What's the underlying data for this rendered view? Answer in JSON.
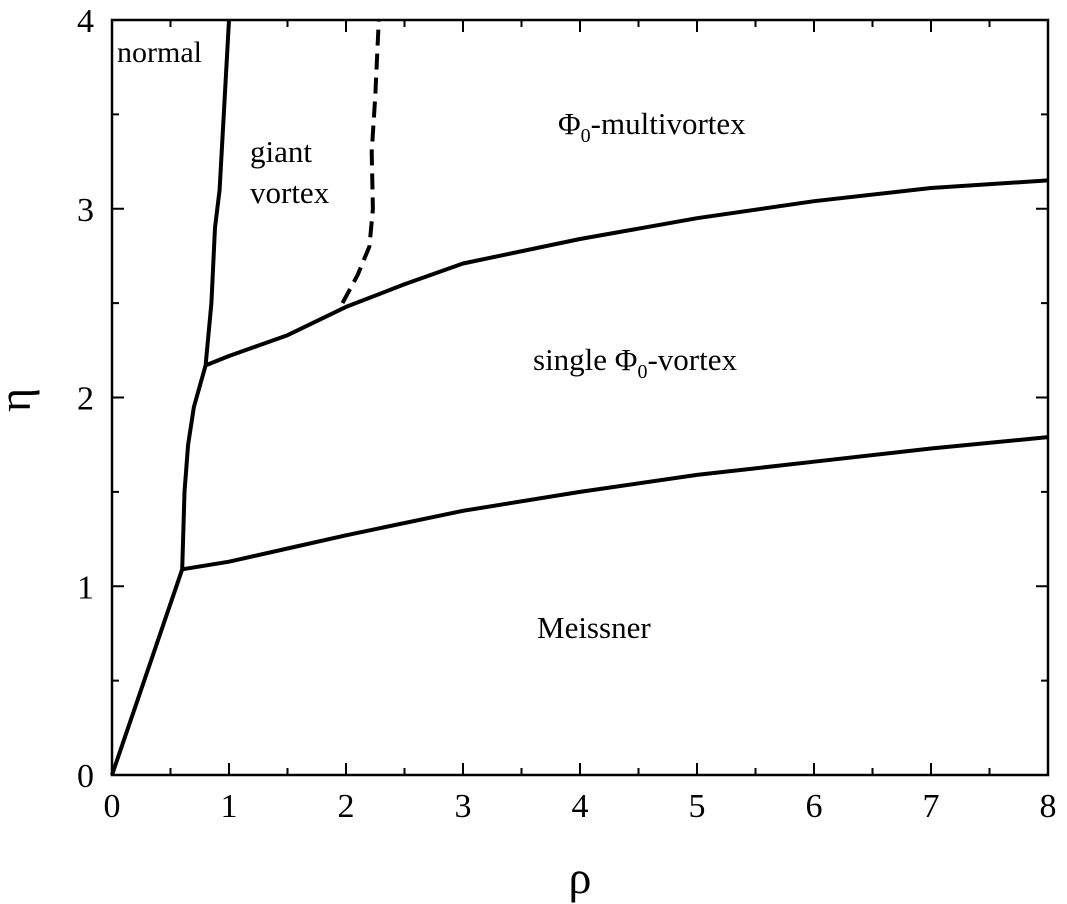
{
  "chart_data": {
    "type": "line",
    "title": "",
    "xlabel": "ρ",
    "ylabel": "η",
    "xlim": [
      0,
      8
    ],
    "ylim": [
      0,
      4
    ],
    "xticks": [
      0,
      1,
      2,
      3,
      4,
      5,
      6,
      7,
      8
    ],
    "xtick_labels": [
      "0",
      "1",
      "2",
      "3",
      "4",
      "5",
      "6",
      "7",
      "8"
    ],
    "yticks": [
      0,
      1,
      2,
      3,
      4
    ],
    "ytick_labels": [
      "0",
      "1",
      "2",
      "3",
      "4"
    ],
    "grid": false,
    "line_color": "#000000",
    "series": [
      {
        "style": "solid",
        "points": [
          [
            0,
            0
          ],
          [
            0.6,
            1.09
          ]
        ]
      },
      {
        "style": "solid",
        "points": [
          [
            0.6,
            1.09
          ],
          [
            0.62,
            1.5
          ],
          [
            0.65,
            1.75
          ],
          [
            0.7,
            1.95
          ],
          [
            0.8,
            2.17
          ]
        ]
      },
      {
        "style": "solid",
        "points": [
          [
            0.8,
            2.17
          ],
          [
            0.85,
            2.5
          ],
          [
            0.88,
            2.9
          ],
          [
            0.92,
            3.1
          ],
          [
            1.0,
            4.0
          ]
        ]
      },
      {
        "style": "solid",
        "points": [
          [
            0.6,
            1.09
          ],
          [
            1,
            1.13
          ],
          [
            1.5,
            1.2
          ],
          [
            2,
            1.27
          ],
          [
            3,
            1.4
          ],
          [
            4,
            1.5
          ],
          [
            5,
            1.59
          ],
          [
            6,
            1.66
          ],
          [
            7,
            1.73
          ],
          [
            8,
            1.79
          ]
        ]
      },
      {
        "style": "solid",
        "points": [
          [
            0.8,
            2.17
          ],
          [
            1,
            2.22
          ],
          [
            1.5,
            2.33
          ],
          [
            2,
            2.48
          ],
          [
            2.5,
            2.6
          ],
          [
            3,
            2.71
          ],
          [
            4,
            2.84
          ],
          [
            5,
            2.95
          ],
          [
            6,
            3.04
          ],
          [
            7,
            3.11
          ],
          [
            8,
            3.15
          ]
        ]
      },
      {
        "style": "dashed",
        "points": [
          [
            1.97,
            2.5
          ],
          [
            2.1,
            2.65
          ],
          [
            2.2,
            2.8
          ],
          [
            2.23,
            3.0
          ],
          [
            2.22,
            3.3
          ],
          [
            2.25,
            3.6
          ],
          [
            2.28,
            4.0
          ]
        ]
      }
    ],
    "annotations": [
      {
        "key": "normal",
        "text": "normal",
        "x": 0.1,
        "y": 3.8
      },
      {
        "key": "giant1",
        "text": "giant",
        "x": 1.55,
        "y": 3.3
      },
      {
        "key": "giant2",
        "text": "vortex",
        "x": 1.65,
        "y": 3.1
      },
      {
        "key": "multivortex",
        "text": "Φ0-multivortex",
        "x": 3.8,
        "y": 3.45
      },
      {
        "key": "single",
        "text": "single Φ0-vortex",
        "x": 3.5,
        "y": 2.2
      },
      {
        "key": "meissner",
        "text": "Meissner",
        "x": 3.6,
        "y": 0.77
      }
    ]
  },
  "labels": {
    "normal": "normal",
    "giant_line1": "giant",
    "giant_line2": "vortex",
    "multivortex_phi": "Φ",
    "multivortex_sub": "0",
    "multivortex_rest": "-multivortex",
    "single_pre": "single Φ",
    "single_sub": "0",
    "single_rest": "-vortex",
    "meissner": "Meissner"
  }
}
